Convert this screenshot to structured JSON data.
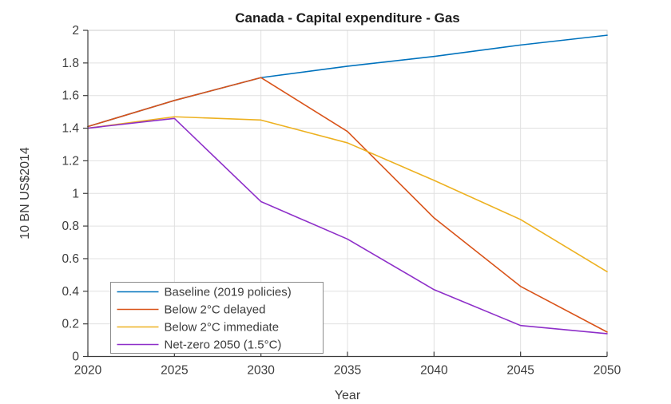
{
  "chart_data": {
    "type": "line",
    "title": "Canada - Capital expenditure - Gas",
    "xlabel": "Year",
    "ylabel": "10 BN US$2014",
    "x": [
      2020,
      2025,
      2030,
      2035,
      2040,
      2045,
      2050
    ],
    "xlim": [
      2020,
      2050
    ],
    "ylim": [
      0,
      2
    ],
    "xticks": [
      2020,
      2025,
      2030,
      2035,
      2040,
      2045,
      2050
    ],
    "xtick_labels": [
      "2020",
      "2025",
      "2030",
      "2035",
      "2040",
      "2045",
      "2050"
    ],
    "yticks": [
      0,
      0.2,
      0.4,
      0.6,
      0.8,
      1,
      1.2,
      1.4,
      1.6,
      1.8,
      2
    ],
    "ytick_labels": [
      "0",
      "0.2",
      "0.4",
      "0.6",
      "0.8",
      "1",
      "1.2",
      "1.4",
      "1.6",
      "1.8",
      "2"
    ],
    "grid": true,
    "legend_position": "lower-left-inside",
    "colors": {
      "grid": "#e0e0e0",
      "frame_light": "#cccccc",
      "axis_dark": "#3c3c3c",
      "legend_border": "#8c8c8c",
      "background": "#ffffff"
    },
    "series": [
      {
        "name": "Baseline (2019 policies)",
        "color": "#0072BD",
        "values": [
          1.41,
          1.57,
          1.71,
          1.78,
          1.84,
          1.91,
          1.97
        ]
      },
      {
        "name": "Below 2°C delayed",
        "color": "#D95319",
        "values": [
          1.41,
          1.57,
          1.71,
          1.38,
          0.85,
          0.43,
          0.15
        ]
      },
      {
        "name": "Below 2°C immediate",
        "color": "#EDB120",
        "values": [
          1.4,
          1.47,
          1.45,
          1.31,
          1.08,
          0.84,
          0.52
        ]
      },
      {
        "name": "Net-zero 2050 (1.5°C)",
        "color": "#8E2FC9",
        "values": [
          1.4,
          1.46,
          0.95,
          0.72,
          0.41,
          0.19,
          0.14
        ]
      }
    ]
  }
}
